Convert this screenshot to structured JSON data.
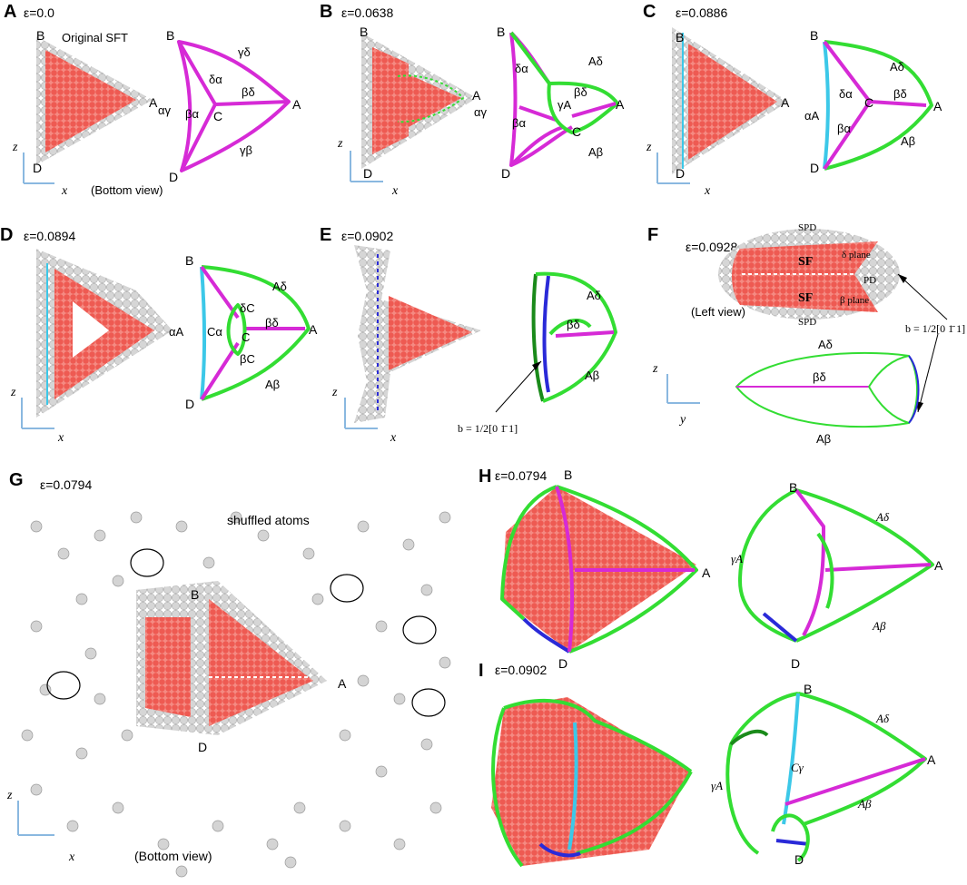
{
  "panels": {
    "A": {
      "letter": "A",
      "strain": "ε=0.0",
      "title": "Original SFT",
      "view": "(Bottom view)",
      "verts": [
        "B",
        "A",
        "C",
        "D"
      ],
      "edges": [
        "γδ",
        "δα",
        "βδ",
        "βα",
        "γβ"
      ],
      "mark": "αγ",
      "axes": [
        "z",
        "x"
      ]
    },
    "B": {
      "letter": "B",
      "strain": "ε=0.0638",
      "verts": [
        "B",
        "A",
        "C",
        "D"
      ],
      "edges": [
        "Aδ",
        "δα",
        "γA",
        "βδ",
        "βα",
        "Aβ"
      ],
      "mark": "αγ",
      "axes": [
        "z",
        "x"
      ]
    },
    "C": {
      "letter": "C",
      "strain": "ε=0.0886",
      "verts": [
        "B",
        "A",
        "C",
        "D"
      ],
      "edges": [
        "Aδ",
        "δα",
        "βδ",
        "βα",
        "Aβ"
      ],
      "mark": "αA",
      "axes": [
        "z",
        "x"
      ]
    },
    "D": {
      "letter": "D",
      "strain": "ε=0.0894",
      "verts": [
        "B",
        "A",
        "C",
        "D"
      ],
      "edges": [
        "Aδ",
        "δC",
        "Cα",
        "βδ",
        "βC",
        "Aβ"
      ],
      "mark": "αA",
      "axes": [
        "z",
        "x"
      ]
    },
    "E": {
      "letter": "E",
      "strain": "ε=0.0902",
      "edges": [
        "Aδ",
        "βδ",
        "Aβ"
      ],
      "burgers": "b = 1/2[0 1̄ 1]",
      "axes": [
        "z",
        "x"
      ]
    },
    "F": {
      "letter": "F",
      "strain": "ε=0.0928",
      "labels": [
        "SPD",
        "δ plane",
        "SF",
        "SF",
        "β plane",
        "PD",
        "SPD"
      ],
      "view": "(Left view)",
      "burgers": "b = 1/2[0 1̄ 1]",
      "edges": [
        "Aδ",
        "βδ",
        "Aβ"
      ],
      "axes": [
        "z",
        "y"
      ]
    },
    "G": {
      "letter": "G",
      "strain": "ε=0.0794",
      "title": "shuffled atoms",
      "verts": [
        "B",
        "A",
        "D"
      ],
      "view": "(Bottom view)",
      "axes": [
        "z",
        "x"
      ]
    },
    "H": {
      "letter": "H",
      "strain": "ε=0.0794",
      "verts": [
        "B",
        "A",
        "D",
        "B",
        "A",
        "D"
      ],
      "edges": [
        "Aδ",
        "γA",
        "Aβ"
      ]
    },
    "I": {
      "letter": "I",
      "strain": "ε=0.0902",
      "verts": [
        "B",
        "A",
        "D"
      ],
      "edges": [
        "Aδ",
        "γA",
        "Cγ",
        "Aβ"
      ]
    }
  },
  "colors": {
    "atom_red": "#f06a62",
    "atom_grey": "#d4d4d4",
    "magenta": "#d62ad6",
    "green": "#33dd33",
    "cyan": "#3cc8e8",
    "blue": "#2a2ad8",
    "darkgreen": "#1a8a1a",
    "axis": "#8ab8e0"
  }
}
